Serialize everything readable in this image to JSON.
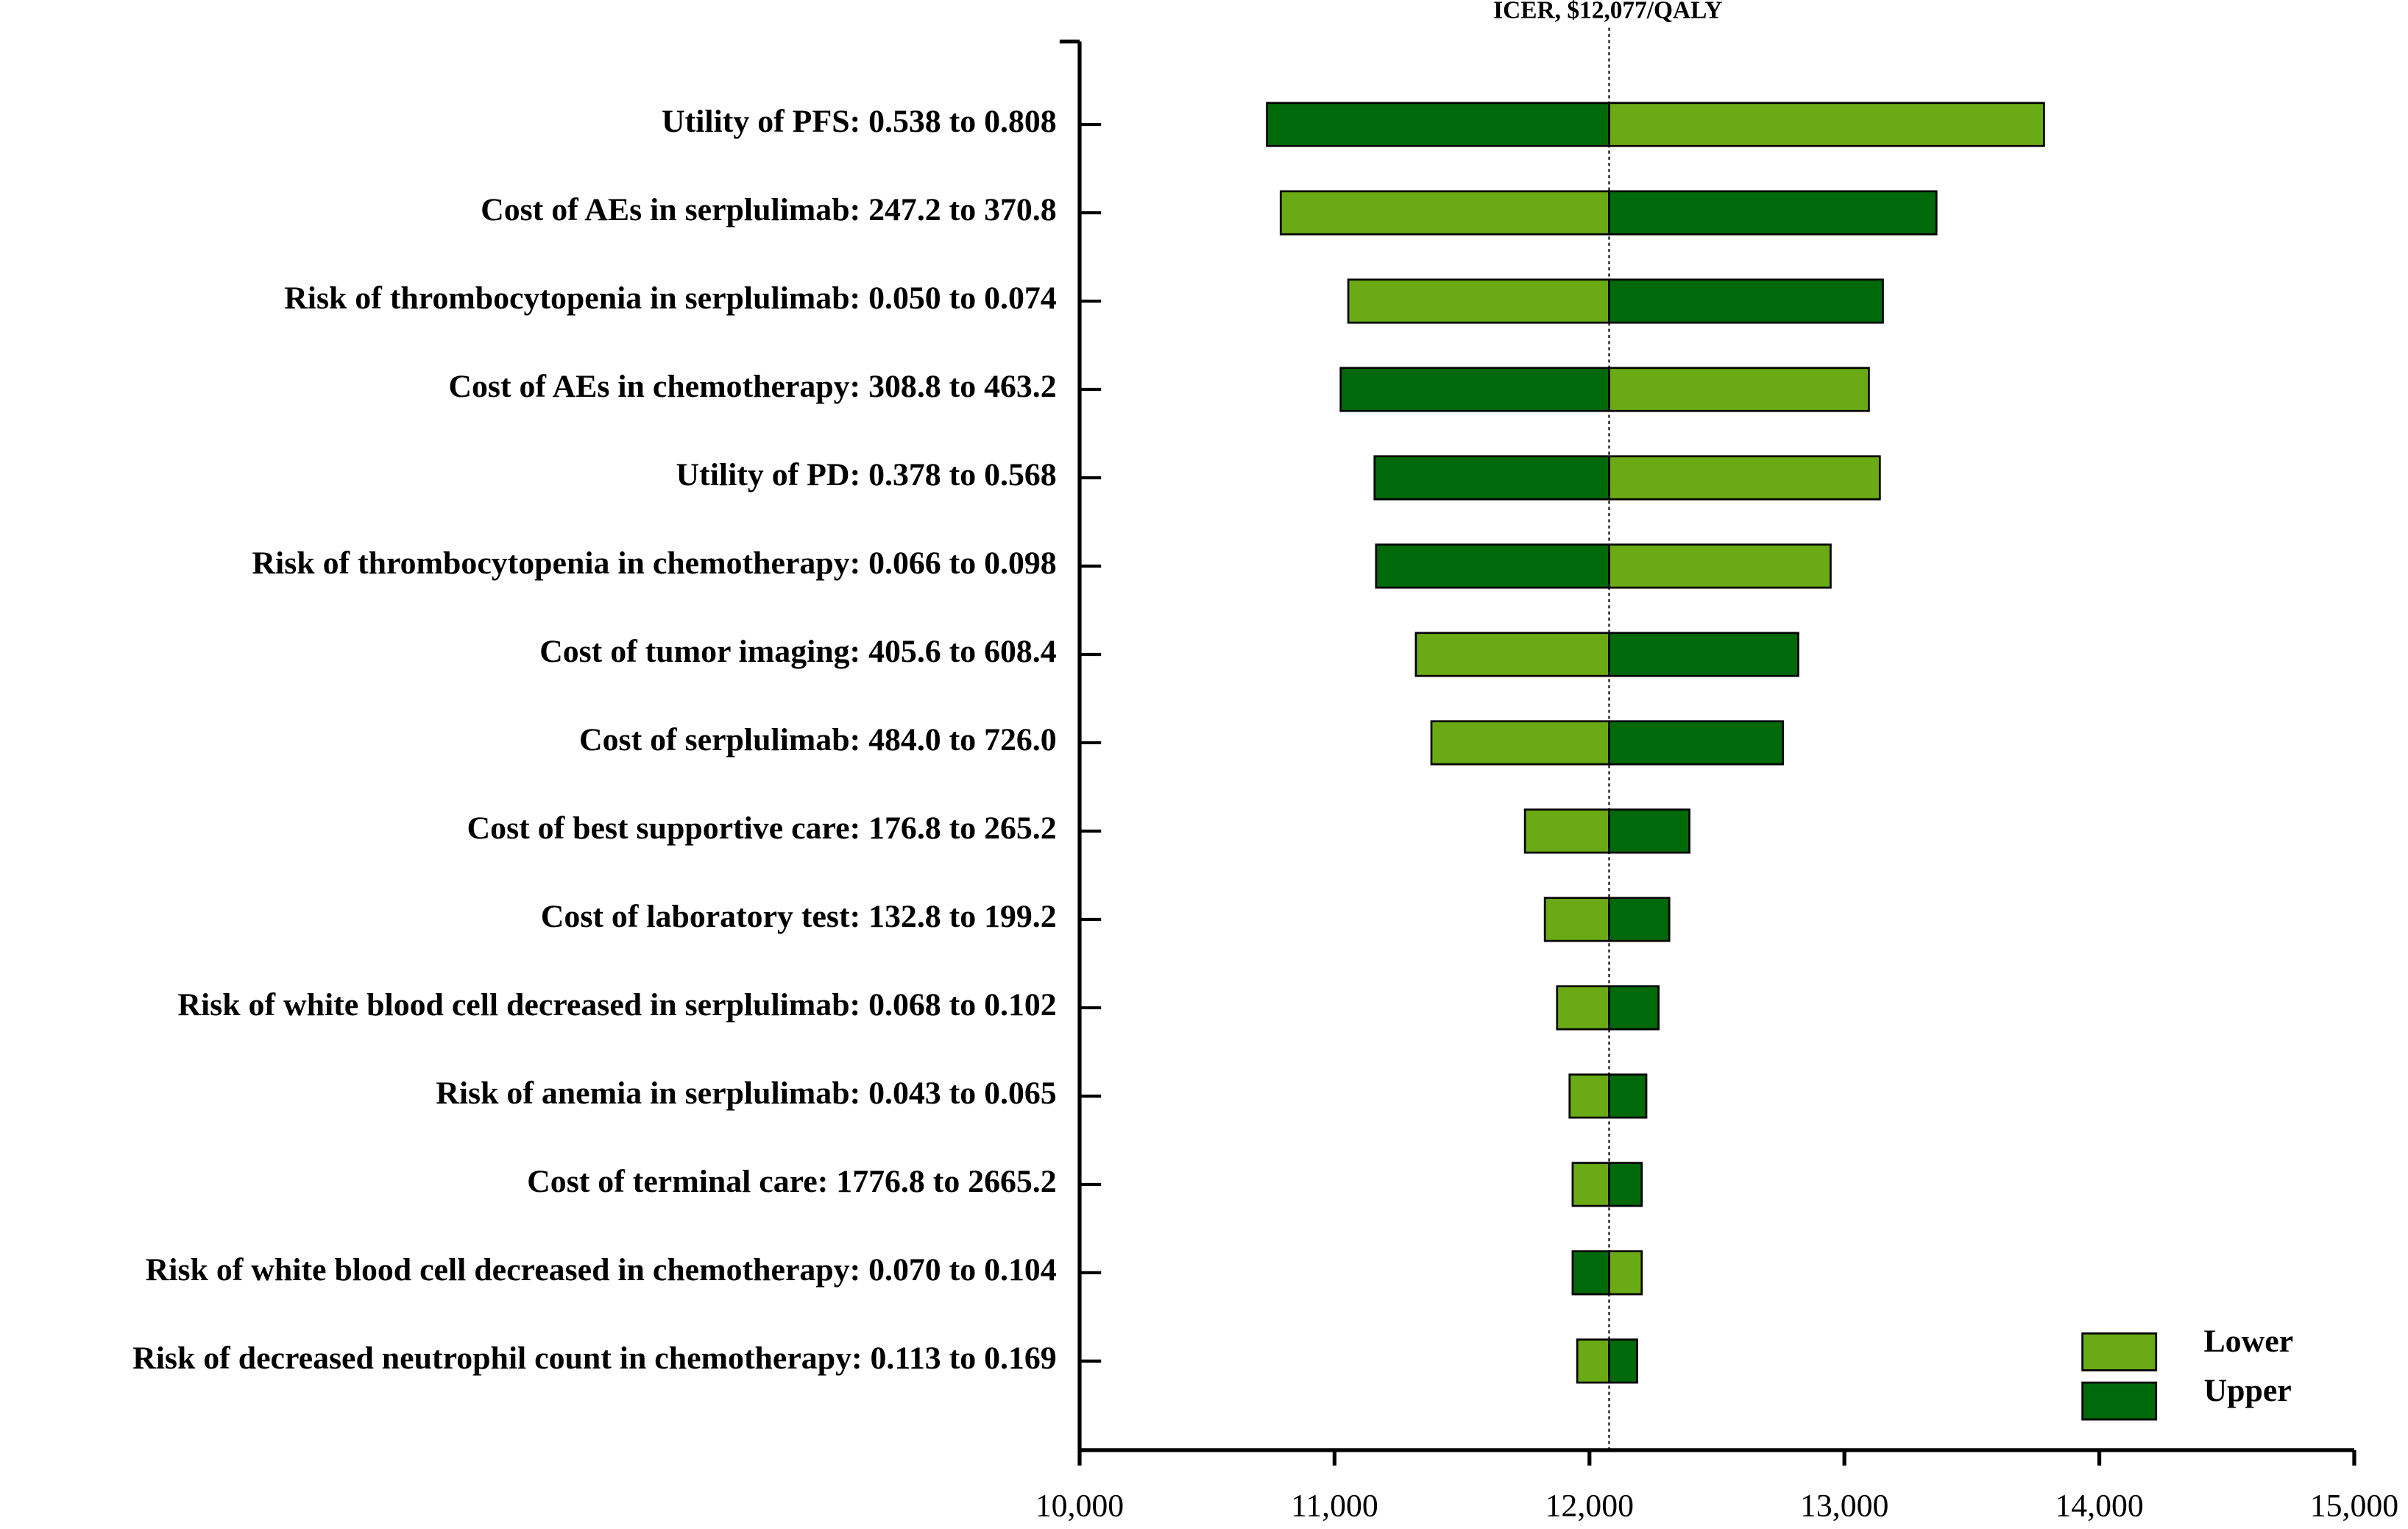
{
  "chart_data": {
    "type": "tornado",
    "annotation": "ICER, $12,077/QALY",
    "baseline": 12077,
    "categories": [
      "Utility of PFS: 0.538 to 0.808",
      "Cost of AEs in serplulimab: 247.2 to 370.8",
      "Risk of thrombocytopenia in serplulimab: 0.050 to 0.074",
      "Cost of AEs in chemotherapy: 308.8 to 463.2",
      "Utility of PD: 0.378 to 0.568",
      "Risk of thrombocytopenia in chemotherapy: 0.066 to 0.098",
      "Cost of tumor imaging: 405.6 to 608.4",
      "Cost of serplulimab: 484.0 to 726.0",
      "Cost of best supportive care: 176.8 to 265.2",
      "Cost of laboratory test: 132.8 to 199.2",
      "Risk of white blood cell decreased in serplulimab: 0.068 to 0.102",
      "Risk of anemia in serplulimab: 0.043 to 0.065",
      "Cost of terminal care: 1776.8 to 2665.2",
      "Risk of white blood cell decreased in chemotherapy: 0.070 to 0.104",
      "Risk of decreased neutrophil count in chemotherapy: 0.113 to 0.169"
    ],
    "series": [
      {
        "name": "Lower",
        "color": "#6aaa14",
        "values": [
          13783,
          10789,
          11054,
          13096,
          13139,
          12946,
          11319,
          11380,
          11747,
          11825,
          11873,
          11922,
          11934,
          12205,
          11952
        ]
      },
      {
        "name": "Upper",
        "color": "#006a0a",
        "values": [
          10735,
          13361,
          13151,
          11024,
          11157,
          11163,
          12819,
          12759,
          12392,
          12313,
          12271,
          12223,
          12205,
          11934,
          12187
        ]
      }
    ],
    "xlim": [
      10000,
      15000
    ],
    "xticks": [
      {
        "value": 10000,
        "label": "10,000"
      },
      {
        "value": 11000,
        "label": "11,000"
      },
      {
        "value": 12000,
        "label": "12,000"
      },
      {
        "value": 13000,
        "label": "13,000"
      },
      {
        "value": 14000,
        "label": "14,000"
      },
      {
        "value": 15000,
        "label": "15,000"
      }
    ],
    "legend": "lower right"
  }
}
